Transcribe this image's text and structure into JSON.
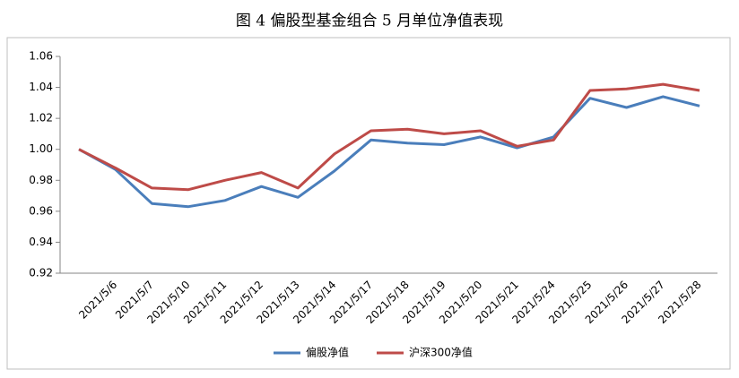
{
  "chart_data": {
    "type": "line",
    "title": "图 4 偏股型基金组合 5 月单位净值表现",
    "categories": [
      null,
      "2021/5/6",
      "2021/5/7",
      "2021/5/10",
      "2021/5/11",
      "2021/5/12",
      "2021/5/13",
      "2021/5/14",
      "2021/5/17",
      "2021/5/18",
      "2021/5/19",
      "2021/5/20",
      "2021/5/21",
      "2021/5/24",
      "2021/5/25",
      "2021/5/26",
      "2021/5/27",
      "2021/5/28"
    ],
    "series": [
      {
        "name": "偏股净值",
        "color": "#4a7ebb",
        "values": [
          1.0,
          0.987,
          0.965,
          0.963,
          0.967,
          0.976,
          0.969,
          0.986,
          1.006,
          1.004,
          1.003,
          1.008,
          1.001,
          1.008,
          1.033,
          1.027,
          1.034,
          1.028
        ]
      },
      {
        "name": "沪深300净值",
        "color": "#be4b48",
        "values": [
          1.0,
          0.988,
          0.975,
          0.974,
          0.98,
          0.985,
          0.975,
          0.997,
          1.012,
          1.013,
          1.01,
          1.012,
          1.002,
          1.006,
          1.038,
          1.039,
          1.042,
          1.038
        ]
      }
    ],
    "ylim": [
      0.92,
      1.06
    ],
    "yticks": [
      0.92,
      0.94,
      0.96,
      0.98,
      {
        "value": 1.0,
        "label": "1.00"
      },
      1.02,
      1.04,
      1.06
    ],
    "grid": false,
    "legend": "bottom"
  }
}
